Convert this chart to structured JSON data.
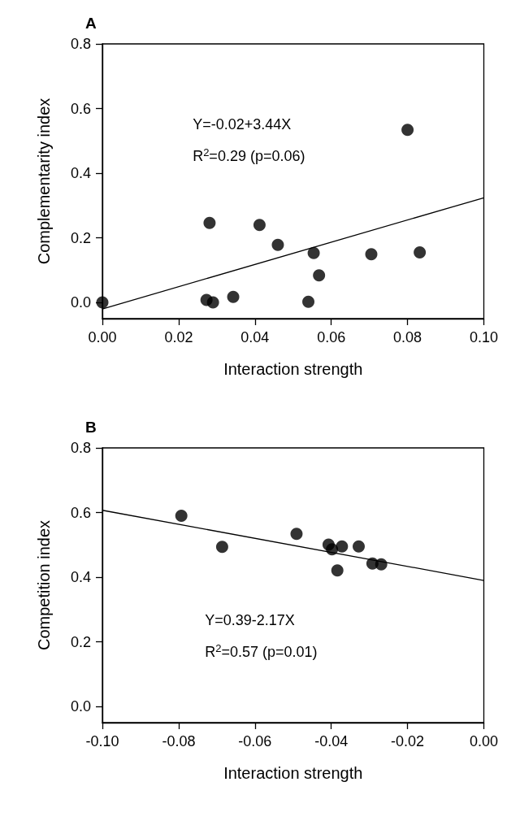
{
  "chart_data": [
    {
      "type": "scatter",
      "title": "A",
      "xlabel": "Interaction strength",
      "ylabel": "Complementarity index",
      "marker": "circle",
      "grid": false,
      "annotations": [
        "Y=-0.02+3.44X",
        "R$^{2}$=0.29 (p=0.06)"
      ],
      "xlim": [
        0,
        0.1
      ],
      "xticks": [
        {
          "value": 0,
          "label": "0.00"
        },
        {
          "value": 0.02,
          "label": "0.02"
        },
        {
          "value": 0.04,
          "label": "0.04"
        },
        {
          "value": 0.06,
          "label": "0.06"
        },
        {
          "value": 0.08,
          "label": "0.08"
        },
        {
          "value": 0.1,
          "label": "0.10"
        }
      ],
      "ylim": [
        -0.05,
        0.8
      ],
      "yticks": [
        {
          "value": 0,
          "label": "0.0"
        },
        {
          "value": 0.2,
          "label": "0.2"
        },
        {
          "value": 0.4,
          "label": "0.4"
        },
        {
          "value": 0.6,
          "label": "0.6"
        },
        {
          "value": 0.8,
          "label": "0.8"
        }
      ],
      "series": [
        {
          "color": "#000000",
          "x": [
            0,
            0.0273,
            0.029,
            0.0343,
            0.0281,
            0.0412,
            0.046,
            0.0554,
            0.0568,
            0.054,
            0.0705,
            0.08,
            0.0832
          ],
          "values": [
            0,
            0.008,
            0,
            0.017,
            0.246,
            0.24,
            0.178,
            0.153,
            0.084,
            0.002,
            0.149,
            0.534,
            0.155
          ]
        },
        {
          "type": "line",
          "color": "#000000",
          "marker": "none",
          "x": [
            0,
            0.1
          ],
          "values": [
            -0.02,
            0.324
          ]
        }
      ]
    },
    {
      "type": "scatter",
      "title": "B",
      "xlabel": "Interaction strength",
      "ylabel": "Competition index",
      "marker": "circle",
      "grid": false,
      "annotations": [
        "Y=0.39-2.17X",
        "R$^{2}$=0.57 (p=0.01)"
      ],
      "xlim": [
        -0.1,
        0
      ],
      "xticks": [
        {
          "value": -0.1,
          "label": "-0.10"
        },
        {
          "value": -0.08,
          "label": "-0.08"
        },
        {
          "value": -0.06,
          "label": "-0.06"
        },
        {
          "value": -0.04,
          "label": "-0.04"
        },
        {
          "value": -0.02,
          "label": "-0.02"
        },
        {
          "value": 0,
          "label": "0.00"
        }
      ],
      "ylim": [
        -0.05,
        0.8
      ],
      "yticks": [
        {
          "value": 0,
          "label": "0.0"
        },
        {
          "value": 0.2,
          "label": "0.2"
        },
        {
          "value": 0.4,
          "label": "0.4"
        },
        {
          "value": 0.6,
          "label": "0.6"
        },
        {
          "value": 0.8,
          "label": "0.8"
        }
      ],
      "series": [
        {
          "color": "#000000",
          "x": [
            -0.0793,
            -0.0686,
            -0.0491,
            -0.0407,
            -0.0398,
            -0.0372,
            -0.0384,
            -0.0328,
            -0.0292,
            -0.0269
          ],
          "values": [
            0.59,
            0.494,
            0.534,
            0.501,
            0.486,
            0.495,
            0.421,
            0.495,
            0.442,
            0.44
          ]
        },
        {
          "type": "line",
          "color": "#000000",
          "marker": "none",
          "x": [
            -0.1,
            0
          ],
          "values": [
            0.607,
            0.39
          ]
        }
      ]
    }
  ]
}
